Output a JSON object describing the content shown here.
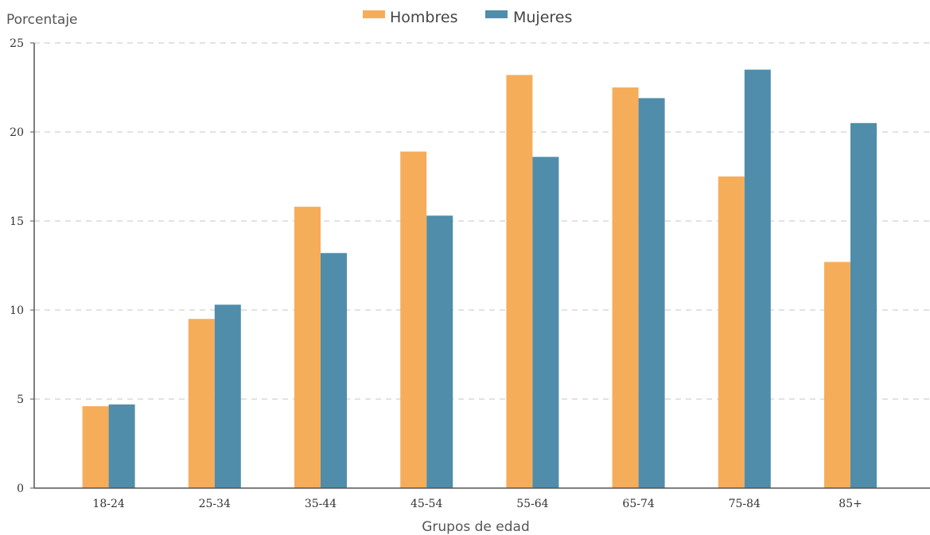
{
  "chart_data": {
    "type": "bar",
    "title": "",
    "ylabel": "Porcentaje",
    "xlabel": "Grupos de edad",
    "ylim": [
      0,
      25
    ],
    "yticks": [
      0,
      5,
      10,
      15,
      20,
      25
    ],
    "grid": true,
    "legend_position": "top-center",
    "categories": [
      "18-24",
      "25-34",
      "35-44",
      "45-54",
      "55-64",
      "65-74",
      "75-84",
      "85+"
    ],
    "series": [
      {
        "name": "Hombres",
        "color": "#f6ad5a",
        "values": [
          4.6,
          9.5,
          15.8,
          18.9,
          23.2,
          22.5,
          17.5,
          12.7
        ]
      },
      {
        "name": "Mujeres",
        "color": "#4f8dab",
        "values": [
          4.7,
          10.3,
          13.2,
          15.3,
          18.6,
          21.9,
          23.5,
          20.5
        ]
      }
    ]
  }
}
